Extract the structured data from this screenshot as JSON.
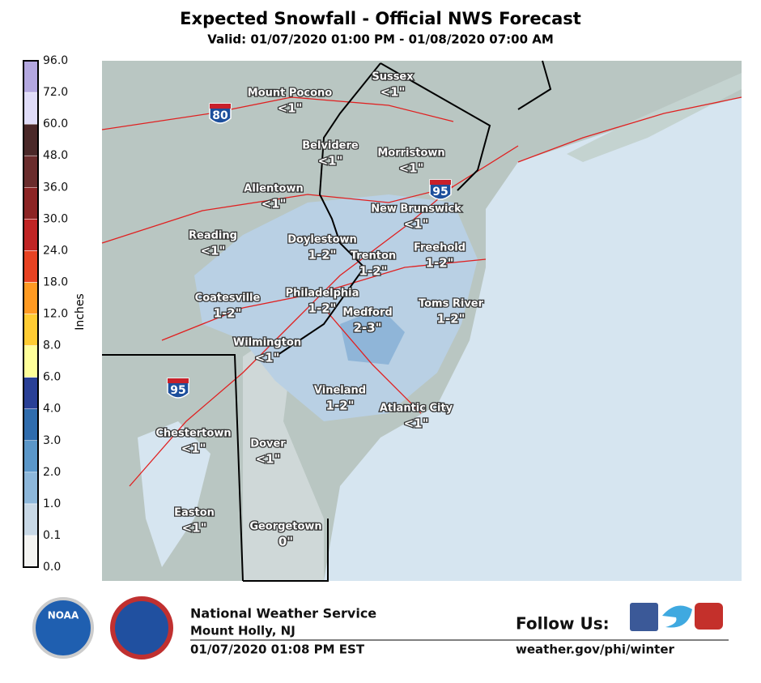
{
  "header": {
    "title": "Expected Snowfall - Official NWS Forecast",
    "subtitle": "Valid: 01/07/2020 01:00 PM - 01/08/2020 07:00 AM"
  },
  "legend": {
    "label": "Inches",
    "ticks": [
      {
        "value": 0,
        "label": "0.0"
      },
      {
        "value": 0.1,
        "label": "0.1"
      },
      {
        "value": 1,
        "label": "1.0"
      },
      {
        "value": 2,
        "label": "2.0"
      },
      {
        "value": 3,
        "label": "3.0"
      },
      {
        "value": 4,
        "label": "4.0"
      },
      {
        "value": 6,
        "label": "6.0"
      },
      {
        "value": 8,
        "label": "8.0"
      },
      {
        "value": 12,
        "label": "12.0"
      },
      {
        "value": 18,
        "label": "18.0"
      },
      {
        "value": 24,
        "label": "24.0"
      },
      {
        "value": 30,
        "label": "30.0"
      },
      {
        "value": 36,
        "label": "36.0"
      },
      {
        "value": 48,
        "label": "48.0"
      },
      {
        "value": 60,
        "label": "60.0"
      },
      {
        "value": 72,
        "label": "72.0"
      },
      {
        "value": 96,
        "label": "96.0"
      }
    ],
    "colors": [
      "#f4f4f2",
      "#c8d8e6",
      "#8db7da",
      "#5b97c9",
      "#2f6cad",
      "#2a4096",
      "#ffff99",
      "#ffcc33",
      "#ff9a22",
      "#e84222",
      "#c02424",
      "#8c2424",
      "#6a2c2c",
      "#4a2828",
      "#e0dcf8",
      "#b4a8e0",
      "#9078c0"
    ]
  },
  "map": {
    "places": [
      {
        "name": "Mount Pocono",
        "amount": "<1\""
      },
      {
        "name": "Sussex",
        "amount": "<1\""
      },
      {
        "name": "Belvidere",
        "amount": "<1\""
      },
      {
        "name": "Morristown",
        "amount": "<1\""
      },
      {
        "name": "Allentown",
        "amount": "<1\""
      },
      {
        "name": "New Brunswick",
        "amount": "<1\""
      },
      {
        "name": "Reading",
        "amount": "<1\""
      },
      {
        "name": "Doylestown",
        "amount": "1-2\""
      },
      {
        "name": "Trenton",
        "amount": "1-2\""
      },
      {
        "name": "Freehold",
        "amount": "1-2\""
      },
      {
        "name": "Coatesville",
        "amount": "1-2\""
      },
      {
        "name": "Philadelphia",
        "amount": "1-2\""
      },
      {
        "name": "Medford",
        "amount": "2-3\""
      },
      {
        "name": "Toms River",
        "amount": "1-2\""
      },
      {
        "name": "Wilmington",
        "amount": "<1\""
      },
      {
        "name": "Vineland",
        "amount": "1-2\""
      },
      {
        "name": "Atlantic City",
        "amount": "<1\""
      },
      {
        "name": "Chestertown",
        "amount": "<1\""
      },
      {
        "name": "Dover",
        "amount": "<1\""
      },
      {
        "name": "Easton",
        "amount": "<1\""
      },
      {
        "name": "Georgetown",
        "amount": "0\""
      }
    ],
    "shields": [
      "80",
      "95",
      "95"
    ]
  },
  "footer": {
    "agency": "National Weather Service",
    "office": "Mount Holly, NJ",
    "issued": "01/07/2020 01:08 PM EST",
    "follow": "Follow Us:",
    "url": "weather.gov/phi/winter",
    "noaa": "NOAA"
  }
}
